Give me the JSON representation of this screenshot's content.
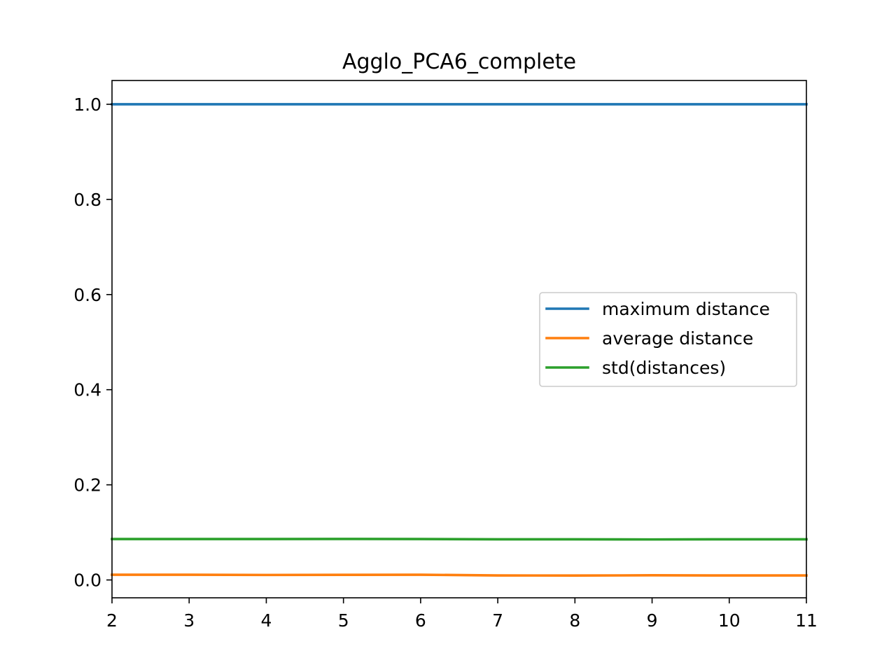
{
  "chart_data": {
    "type": "line",
    "title": "Agglo_PCA6_complete",
    "xlabel": "",
    "ylabel": "",
    "xlim": [
      2,
      11
    ],
    "ylim": [
      -0.0375,
      1.05
    ],
    "x": [
      2,
      3,
      4,
      5,
      6,
      7,
      8,
      9,
      10,
      11
    ],
    "x_ticks": [
      2,
      3,
      4,
      5,
      6,
      7,
      8,
      9,
      10,
      11
    ],
    "x_tick_labels": [
      "2",
      "3",
      "4",
      "5",
      "6",
      "7",
      "8",
      "9",
      "10",
      "11"
    ],
    "y_ticks": [
      0.0,
      0.2,
      0.4,
      0.6,
      0.8,
      1.0
    ],
    "y_tick_labels": [
      "0.0",
      "0.2",
      "0.4",
      "0.6",
      "0.8",
      "1.0"
    ],
    "grid": false,
    "legend_position": "center-right",
    "series": [
      {
        "name": "maximum distance",
        "color": "#1f77b4",
        "values": [
          1.0,
          1.0,
          1.0,
          1.0,
          1.0,
          1.0,
          1.0,
          1.0,
          1.0,
          1.0
        ]
      },
      {
        "name": "average distance",
        "color": "#ff7f0e",
        "values": [
          0.011,
          0.011,
          0.0105,
          0.0108,
          0.011,
          0.0095,
          0.0093,
          0.0098,
          0.0095,
          0.0095
        ]
      },
      {
        "name": "std(distances)",
        "color": "#2ca02c",
        "values": [
          0.086,
          0.086,
          0.086,
          0.0862,
          0.086,
          0.0855,
          0.0855,
          0.0852,
          0.0855,
          0.0855
        ]
      }
    ]
  }
}
